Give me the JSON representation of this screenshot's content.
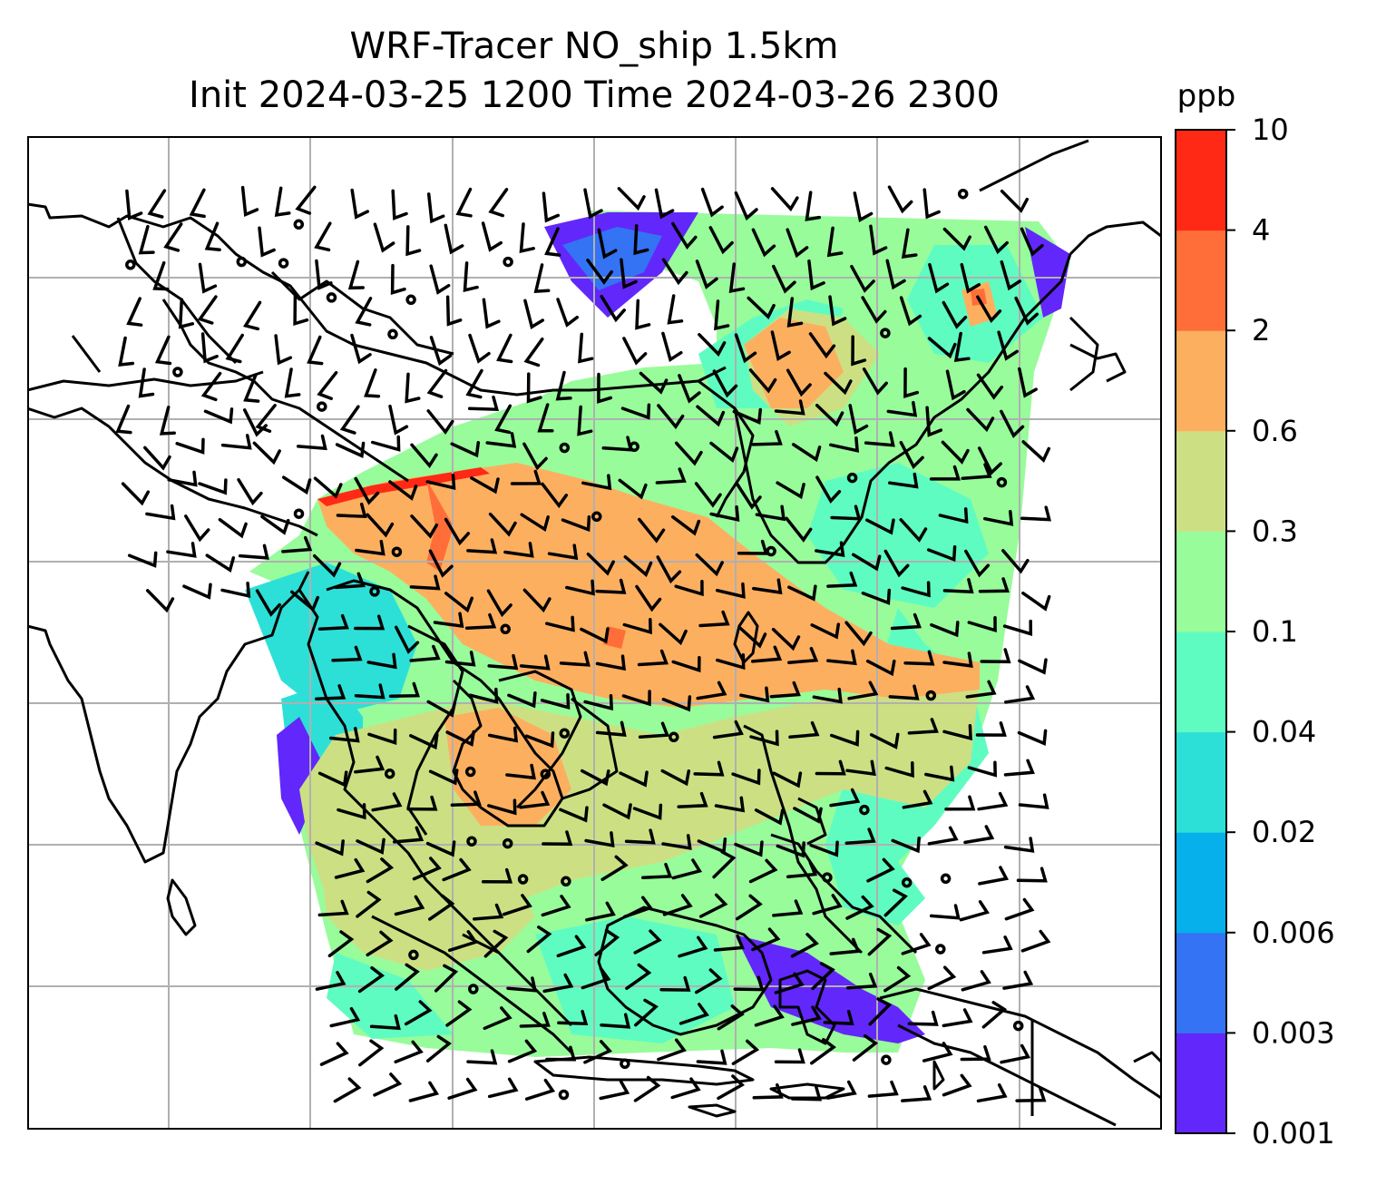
{
  "title": {
    "line1": "WRF-Tracer NO_ship 1.5km",
    "line2": "Init 2024-03-25 1200 Time 2024-03-26 2300"
  },
  "colorbar": {
    "unit": "ppb",
    "levels": [
      "0.001",
      "0.003",
      "0.006",
      "0.02",
      "0.04",
      "0.1",
      "0.3",
      "0.6",
      "2",
      "4",
      "10"
    ],
    "colors": [
      "#6227fa",
      "#3373f4",
      "#06b0eb",
      "#2de0d7",
      "#5ffcc2",
      "#98fc9b",
      "#cce083",
      "#fdaf60",
      "#ff6e38",
      "#ff2915"
    ]
  },
  "map": {
    "land_outline_color": "#000000",
    "gridline_color": "#b0b0b0",
    "frame_color": "#000000",
    "barb_color": "#000000"
  }
}
